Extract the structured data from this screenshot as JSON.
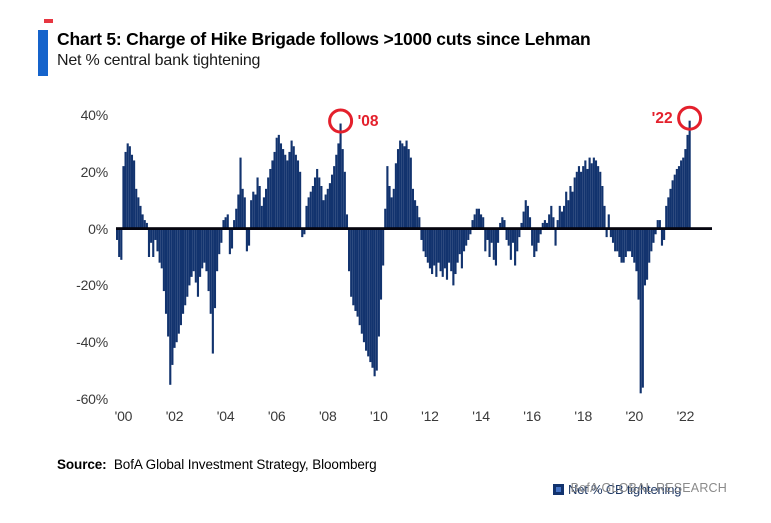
{
  "header": {
    "title": "Chart 5: Charge of Hike Brigade follows >1000 cuts since Lehman",
    "subtitle": "Net % central bank tightening"
  },
  "legend": {
    "label": "Net % CB tightening"
  },
  "footer": {
    "source_label": "Source:",
    "source_text": "BofA Global Investment Strategy, Bloomberg",
    "brand": "BofA GLOBAL RESEARCH"
  },
  "colors": {
    "bar": "#12336e",
    "accent": "#1563cb",
    "annotation": "#e4202c",
    "axis": "#05050f",
    "legend_inner": "#4472c4",
    "tick_text": "#3a3a3a",
    "legend_text": "#1f3864",
    "brand_gray": "#8a8a8a"
  },
  "chart_data": {
    "type": "bar",
    "title": "Chart 5: Charge of Hike Brigade follows >1000 cuts since Lehman",
    "ylabel": "Net % central bank tightening",
    "series_name": "Net % CB tightening",
    "frequency": "monthly",
    "start": "1999-10",
    "end": "2022-03",
    "ylim": [
      -60,
      40
    ],
    "grid": false,
    "legend_position": "inside-bottom-center",
    "y_ticks": [
      40,
      20,
      0,
      -20,
      -40,
      -60
    ],
    "y_tick_suffix": "%",
    "x_tick_labels": [
      "'00",
      "'02",
      "'04",
      "'06",
      "'08",
      "'10",
      "'12",
      "'14",
      "'16",
      "'18",
      "'20",
      "'22"
    ],
    "x_tick_indices": [
      3,
      27,
      51,
      75,
      99,
      123,
      147,
      171,
      195,
      219,
      243,
      267
    ],
    "axis_months": 280,
    "values": [
      -4,
      -10,
      -11,
      22,
      27,
      30,
      29,
      26,
      24,
      14,
      11,
      8,
      5,
      3,
      2,
      -10,
      -5,
      -10,
      -4,
      -8,
      -12,
      -14,
      -22,
      -30,
      -38,
      -55,
      -48,
      -42,
      -40,
      -37,
      -34,
      -30,
      -27,
      -24,
      -20,
      -17,
      -15,
      -19,
      -24,
      -17,
      -14,
      -12,
      -15,
      -22,
      -30,
      -44,
      -28,
      -15,
      -9,
      -5,
      3,
      4,
      5,
      -9,
      -7,
      3,
      7,
      12,
      25,
      14,
      11,
      -8,
      -6,
      10,
      13,
      12,
      18,
      15,
      8,
      11,
      14,
      18,
      21,
      24,
      27,
      32,
      33,
      30,
      28,
      26,
      24,
      27,
      31,
      29,
      26,
      24,
      20,
      -3,
      -2,
      8,
      11,
      13,
      15,
      18,
      21,
      18,
      15,
      10,
      12,
      14,
      16,
      19,
      22,
      26,
      30,
      37,
      28,
      20,
      5,
      -15,
      -24,
      -27,
      -29,
      -31,
      -34,
      -37,
      -40,
      -43,
      -45,
      -47,
      -49,
      -52,
      -50,
      -38,
      -25,
      -13,
      7,
      22,
      15,
      11,
      14,
      23,
      28,
      31,
      30,
      29,
      31,
      28,
      25,
      14,
      10,
      8,
      4,
      -4,
      -8,
      -10,
      -12,
      -14,
      -16,
      -13,
      -17,
      -12,
      -15,
      -17,
      -14,
      -18,
      -12,
      -15,
      -20,
      -16,
      -12,
      -9,
      -14,
      -8,
      -6,
      -4,
      -2,
      3,
      5,
      7,
      7,
      5,
      4,
      -8,
      -4,
      -10,
      -5,
      -11,
      -13,
      -5,
      2,
      4,
      3,
      -4,
      -6,
      -11,
      -5,
      -13,
      -8,
      -3,
      2,
      6,
      10,
      8,
      4,
      -6,
      -10,
      -8,
      -5,
      -2,
      2,
      3,
      2,
      5,
      8,
      4,
      -6,
      3,
      8,
      6,
      8,
      13,
      10,
      15,
      13,
      18,
      20,
      22,
      20,
      22,
      24,
      21,
      25,
      23,
      25,
      24,
      22,
      20,
      15,
      8,
      -3,
      5,
      -3,
      -5,
      -8,
      -8,
      -10,
      -12,
      -12,
      -10,
      -8,
      -8,
      -10,
      -12,
      -15,
      -25,
      -58,
      -56,
      -20,
      -18,
      -12,
      -8,
      -5,
      -2,
      3,
      3,
      -6,
      -4,
      8,
      11,
      14,
      17,
      19,
      21,
      22,
      24,
      25,
      28,
      33,
      38
    ],
    "annotations": [
      {
        "label": "'08",
        "index": 105,
        "value": 37,
        "side": "right"
      },
      {
        "label": "'22",
        "index": 269,
        "value": 38,
        "side": "left"
      }
    ]
  }
}
